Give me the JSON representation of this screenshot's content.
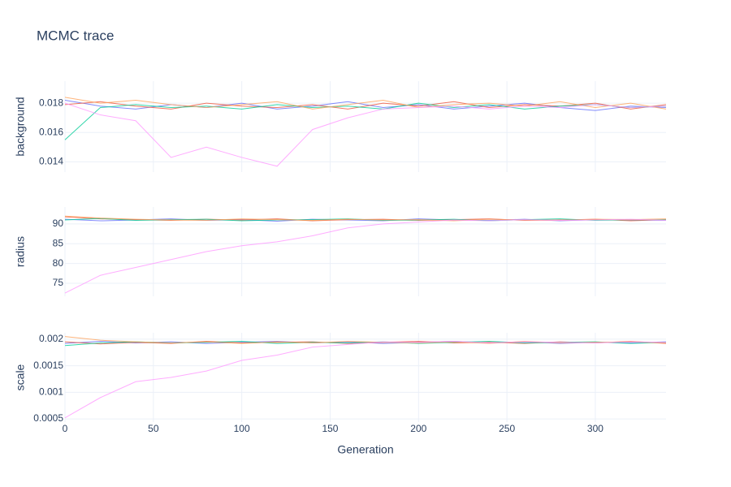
{
  "chart_data": {
    "type": "line",
    "title": "MCMC trace",
    "x_label": "Generation",
    "x": [
      0,
      20,
      40,
      60,
      80,
      100,
      120,
      140,
      160,
      180,
      200,
      220,
      240,
      260,
      280,
      300,
      320,
      340
    ],
    "xlim": [
      0,
      340
    ],
    "xticks": [
      0,
      50,
      100,
      150,
      200,
      250,
      300
    ],
    "grid": true,
    "subplots": [
      {
        "y_label": "background",
        "ylim": [
          0.0133,
          0.0195
        ],
        "yticks": [
          0.014,
          0.016,
          0.018
        ],
        "series": [
          {
            "color": "#636efa",
            "values": [
              0.0182,
              0.0178,
              0.0176,
              0.0179,
              0.0177,
              0.018,
              0.0176,
              0.0178,
              0.0181,
              0.0177,
              0.0179,
              0.0176,
              0.0178,
              0.018,
              0.0177,
              0.0175,
              0.0178,
              0.0177
            ]
          },
          {
            "color": "#EF553B",
            "values": [
              0.0179,
              0.0181,
              0.0178,
              0.0176,
              0.018,
              0.0178,
              0.0177,
              0.0179,
              0.0176,
              0.018,
              0.0178,
              0.0181,
              0.0177,
              0.0179,
              0.0178,
              0.018,
              0.0176,
              0.0179
            ]
          },
          {
            "color": "#00cc96",
            "values": [
              0.0155,
              0.0177,
              0.0179,
              0.0177,
              0.0178,
              0.0176,
              0.0179,
              0.0177,
              0.0178,
              0.0176,
              0.018,
              0.0177,
              0.0179,
              0.0176,
              0.0178,
              0.0179,
              0.0177,
              0.0178
            ]
          },
          {
            "color": "#FFA15A",
            "values": [
              0.0184,
              0.018,
              0.0182,
              0.0179,
              0.0177,
              0.0179,
              0.0181,
              0.0176,
              0.0179,
              0.0182,
              0.0177,
              0.0179,
              0.018,
              0.0178,
              0.0181,
              0.0177,
              0.018,
              0.0176
            ]
          },
          {
            "color": "#FF97FF",
            "values": [
              0.018,
              0.0172,
              0.0168,
              0.0143,
              0.015,
              0.0143,
              0.0137,
              0.0162,
              0.017,
              0.0176,
              0.0177,
              0.0178,
              0.0176,
              0.0178,
              0.0177,
              0.0179,
              0.0177,
              0.0178
            ]
          }
        ]
      },
      {
        "y_label": "radius",
        "ylim": [
          71.7,
          94.3
        ],
        "yticks": [
          75,
          80,
          85,
          90
        ],
        "series": [
          {
            "color": "#636efa",
            "values": [
              91.2,
              90.8,
              91.0,
              91.3,
              90.9,
              91.1,
              90.7,
              91.2,
              91.0,
              90.8,
              91.3,
              91.0,
              90.9,
              91.2,
              90.8,
              91.1,
              91.0,
              90.9
            ]
          },
          {
            "color": "#EF553B",
            "values": [
              91.8,
              91.3,
              91.1,
              90.9,
              91.2,
              91.0,
              91.3,
              90.8,
              91.1,
              91.2,
              90.9,
              91.1,
              91.3,
              90.9,
              91.0,
              91.2,
              90.8,
              91.1
            ]
          },
          {
            "color": "#00cc96",
            "values": [
              91.0,
              91.4,
              90.9,
              91.1,
              91.2,
              90.8,
              91.0,
              91.1,
              91.3,
              90.9,
              91.0,
              91.2,
              90.8,
              91.1,
              91.3,
              90.9,
              91.1,
              91.0
            ]
          },
          {
            "color": "#FFA15A",
            "values": [
              92.0,
              91.5,
              91.2,
              91.0,
              90.9,
              91.3,
              91.1,
              90.9,
              91.2,
              91.0,
              91.1,
              90.8,
              91.2,
              91.0,
              90.9,
              91.2,
              91.1,
              91.3
            ]
          },
          {
            "color": "#FF97FF",
            "values": [
              72.5,
              77,
              79,
              81,
              83,
              84.5,
              85.5,
              87,
              89,
              90,
              90.5,
              91,
              90.8,
              91.1,
              90.9,
              91.0,
              91.2,
              90.9
            ]
          }
        ]
      },
      {
        "y_label": "scale",
        "ylim": [
          0.00044,
          0.00212
        ],
        "yticks": [
          0.0005,
          0.001,
          0.0015,
          0.002
        ],
        "series": [
          {
            "color": "#636efa",
            "values": [
              0.00192,
              0.00196,
              0.00193,
              0.00195,
              0.00192,
              0.00194,
              0.00196,
              0.00193,
              0.00195,
              0.00192,
              0.00194,
              0.00196,
              0.00193,
              0.00195,
              0.00192,
              0.00194,
              0.00193,
              0.00195
            ]
          },
          {
            "color": "#EF553B",
            "values": [
              0.00195,
              0.00191,
              0.00194,
              0.00192,
              0.00196,
              0.00193,
              0.00194,
              0.00195,
              0.00192,
              0.00194,
              0.00196,
              0.00193,
              0.00194,
              0.00192,
              0.00195,
              0.00193,
              0.00196,
              0.00192
            ]
          },
          {
            "color": "#00cc96",
            "values": [
              0.00188,
              0.00193,
              0.00195,
              0.00193,
              0.00194,
              0.00196,
              0.00192,
              0.00194,
              0.00193,
              0.00195,
              0.00192,
              0.00194,
              0.00196,
              0.00193,
              0.00194,
              0.00195,
              0.00192,
              0.00194
            ]
          },
          {
            "color": "#FFA15A",
            "values": [
              0.00205,
              0.00198,
              0.00195,
              0.00193,
              0.00195,
              0.00192,
              0.00195,
              0.00193,
              0.00196,
              0.00194,
              0.00193,
              0.00195,
              0.00192,
              0.00196,
              0.00193,
              0.00194,
              0.00195,
              0.00193
            ]
          },
          {
            "color": "#FF97FF",
            "values": [
              0.00052,
              0.0009,
              0.0012,
              0.00128,
              0.0014,
              0.0016,
              0.0017,
              0.00185,
              0.0019,
              0.00195,
              0.00194,
              0.00196,
              0.00193,
              0.00195,
              0.00194,
              0.00193,
              0.00195,
              0.00194
            ]
          }
        ]
      }
    ]
  }
}
